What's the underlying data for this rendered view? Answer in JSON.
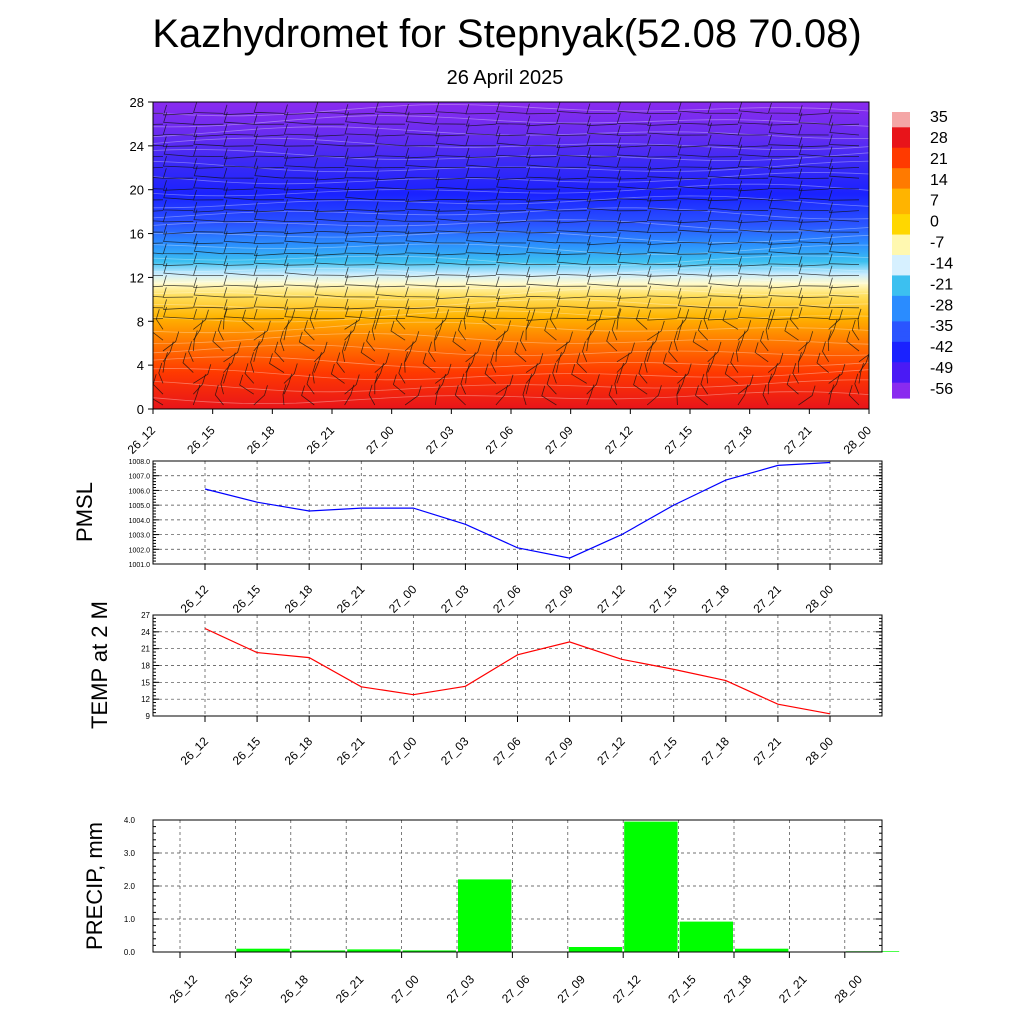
{
  "header": {
    "title": "Kazhydromet for Stepnyak(52.08 70.08)",
    "date": "26 April 2025"
  },
  "chart_data": [
    {
      "type": "heatmap",
      "title": "",
      "x_tick_labels": [
        "26_12",
        "26_15",
        "26_18",
        "26_21",
        "27_00",
        "27_03",
        "27_06",
        "27_09",
        "27_12",
        "27_15",
        "27_18",
        "27_21",
        "28_00"
      ],
      "y_tick_labels": [
        "0",
        "4",
        "8",
        "12",
        "16",
        "20",
        "24",
        "28"
      ],
      "ylim": [
        0,
        28
      ],
      "colorbar_labels": [
        "35",
        "28",
        "21",
        "14",
        "7",
        "0",
        "-7",
        "-14",
        "-21",
        "-28",
        "-35",
        "-42",
        "-49",
        "-56"
      ],
      "colorbar_colors": [
        "#f4a6a6",
        "#e8141a",
        "#ff3a00",
        "#ff7a00",
        "#ffb400",
        "#ffd700",
        "#fff8b0",
        "#d6f0ff",
        "#3cc0f0",
        "#2a8cff",
        "#2a55ff",
        "#1a22ff",
        "#4a1af5",
        "#8a2bef"
      ],
      "notes": "Temperature by level with wind barbs"
    },
    {
      "type": "line",
      "ylabel": "PMSL",
      "x": [
        "26_12",
        "26_15",
        "26_18",
        "26_21",
        "27_00",
        "27_03",
        "27_06",
        "27_09",
        "27_12",
        "27_15",
        "27_18",
        "27_21",
        "28_00"
      ],
      "series": [
        {
          "values": [
            1006.1,
            1005.2,
            1004.6,
            1004.8,
            1004.8,
            1003.7,
            1002.1,
            1001.4,
            1003.0,
            1005.0,
            1006.7,
            1007.7,
            1007.9
          ]
        }
      ],
      "ylim": [
        1001.0,
        1008.0
      ],
      "y_tick_labels": [
        "1001.0",
        "1002.0",
        "1003.0",
        "1004.0",
        "1005.0",
        "1006.0",
        "1007.0",
        "1008.0"
      ],
      "color": "#0000ff"
    },
    {
      "type": "line",
      "ylabel": "TEMP at 2 M",
      "x": [
        "26_12",
        "26_15",
        "26_18",
        "26_21",
        "27_00",
        "27_03",
        "27_06",
        "27_09",
        "27_12",
        "27_15",
        "27_18",
        "27_21",
        "28_00"
      ],
      "series": [
        {
          "values": [
            24.6,
            20.3,
            19.4,
            14.2,
            12.8,
            14.3,
            19.9,
            22.2,
            19.1,
            17.3,
            15.3,
            11.1,
            9.4
          ]
        }
      ],
      "ylim": [
        9,
        27
      ],
      "y_tick_labels": [
        "9",
        "12",
        "15",
        "18",
        "21",
        "24",
        "27"
      ],
      "color": "#ff0000"
    },
    {
      "type": "bar",
      "ylabel": "PRECIP, mm",
      "categories": [
        "26_12",
        "26_15",
        "26_18",
        "26_21",
        "27_00",
        "27_03",
        "27_06",
        "27_09",
        "27_12",
        "27_15",
        "27_18",
        "27_21",
        "28_00"
      ],
      "values": [
        0.0,
        0.1,
        0.05,
        0.08,
        0.05,
        2.2,
        0.0,
        0.15,
        3.95,
        0.92,
        0.1,
        0.0,
        0.02
      ],
      "ylim": [
        0.0,
        4.0
      ],
      "y_tick_labels": [
        "0.0",
        "1.0",
        "2.0",
        "3.0",
        "4.0"
      ],
      "color": "#00ff00"
    }
  ]
}
